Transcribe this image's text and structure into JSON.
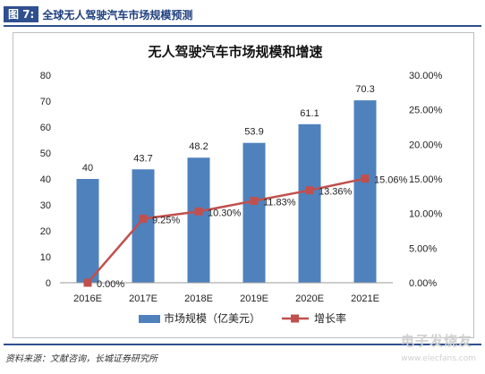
{
  "header": {
    "fig_label": "图 7:",
    "fig_title": "全球无人驾驶汽车市场规模预测"
  },
  "footer": {
    "source": "资料来源：文献咨询，长城证券研究所"
  },
  "watermark": {
    "text": "电子发烧友",
    "url": "www.elecfans.com"
  },
  "colors": {
    "bar": "#4f81bd",
    "line": "#c0504d",
    "header": "#2f4f8f"
  },
  "chart_data": {
    "type": "bar",
    "title": "无人驾驶汽车市场规模和增速",
    "categories": [
      "2016E",
      "2017E",
      "2018E",
      "2019E",
      "2020E",
      "2021E"
    ],
    "series": [
      {
        "name": "市场规模（亿美元）",
        "type": "bar",
        "axis": "left",
        "values": [
          40,
          43.7,
          48.2,
          53.9,
          61.1,
          70.3
        ],
        "labels": [
          "40",
          "43.7",
          "48.2",
          "53.9",
          "61.1",
          "70.3"
        ]
      },
      {
        "name": "增长率",
        "type": "line",
        "axis": "right",
        "values": [
          0.0,
          9.25,
          10.3,
          11.83,
          13.36,
          15.06
        ],
        "labels": [
          "0.00%",
          "9.25%",
          "10.30%",
          "11.83%",
          "13.36%",
          "15.06%"
        ]
      }
    ],
    "ylim_left": [
      0,
      80
    ],
    "yticks_left": [
      "0",
      "10",
      "20",
      "30",
      "40",
      "50",
      "60",
      "70",
      "80"
    ],
    "ylim_right": [
      0,
      30
    ],
    "yticks_right": [
      "0.00%",
      "5.00%",
      "10.00%",
      "15.00%",
      "20.00%",
      "25.00%",
      "30.00%"
    ],
    "grid": false,
    "legend_position": "bottom"
  }
}
